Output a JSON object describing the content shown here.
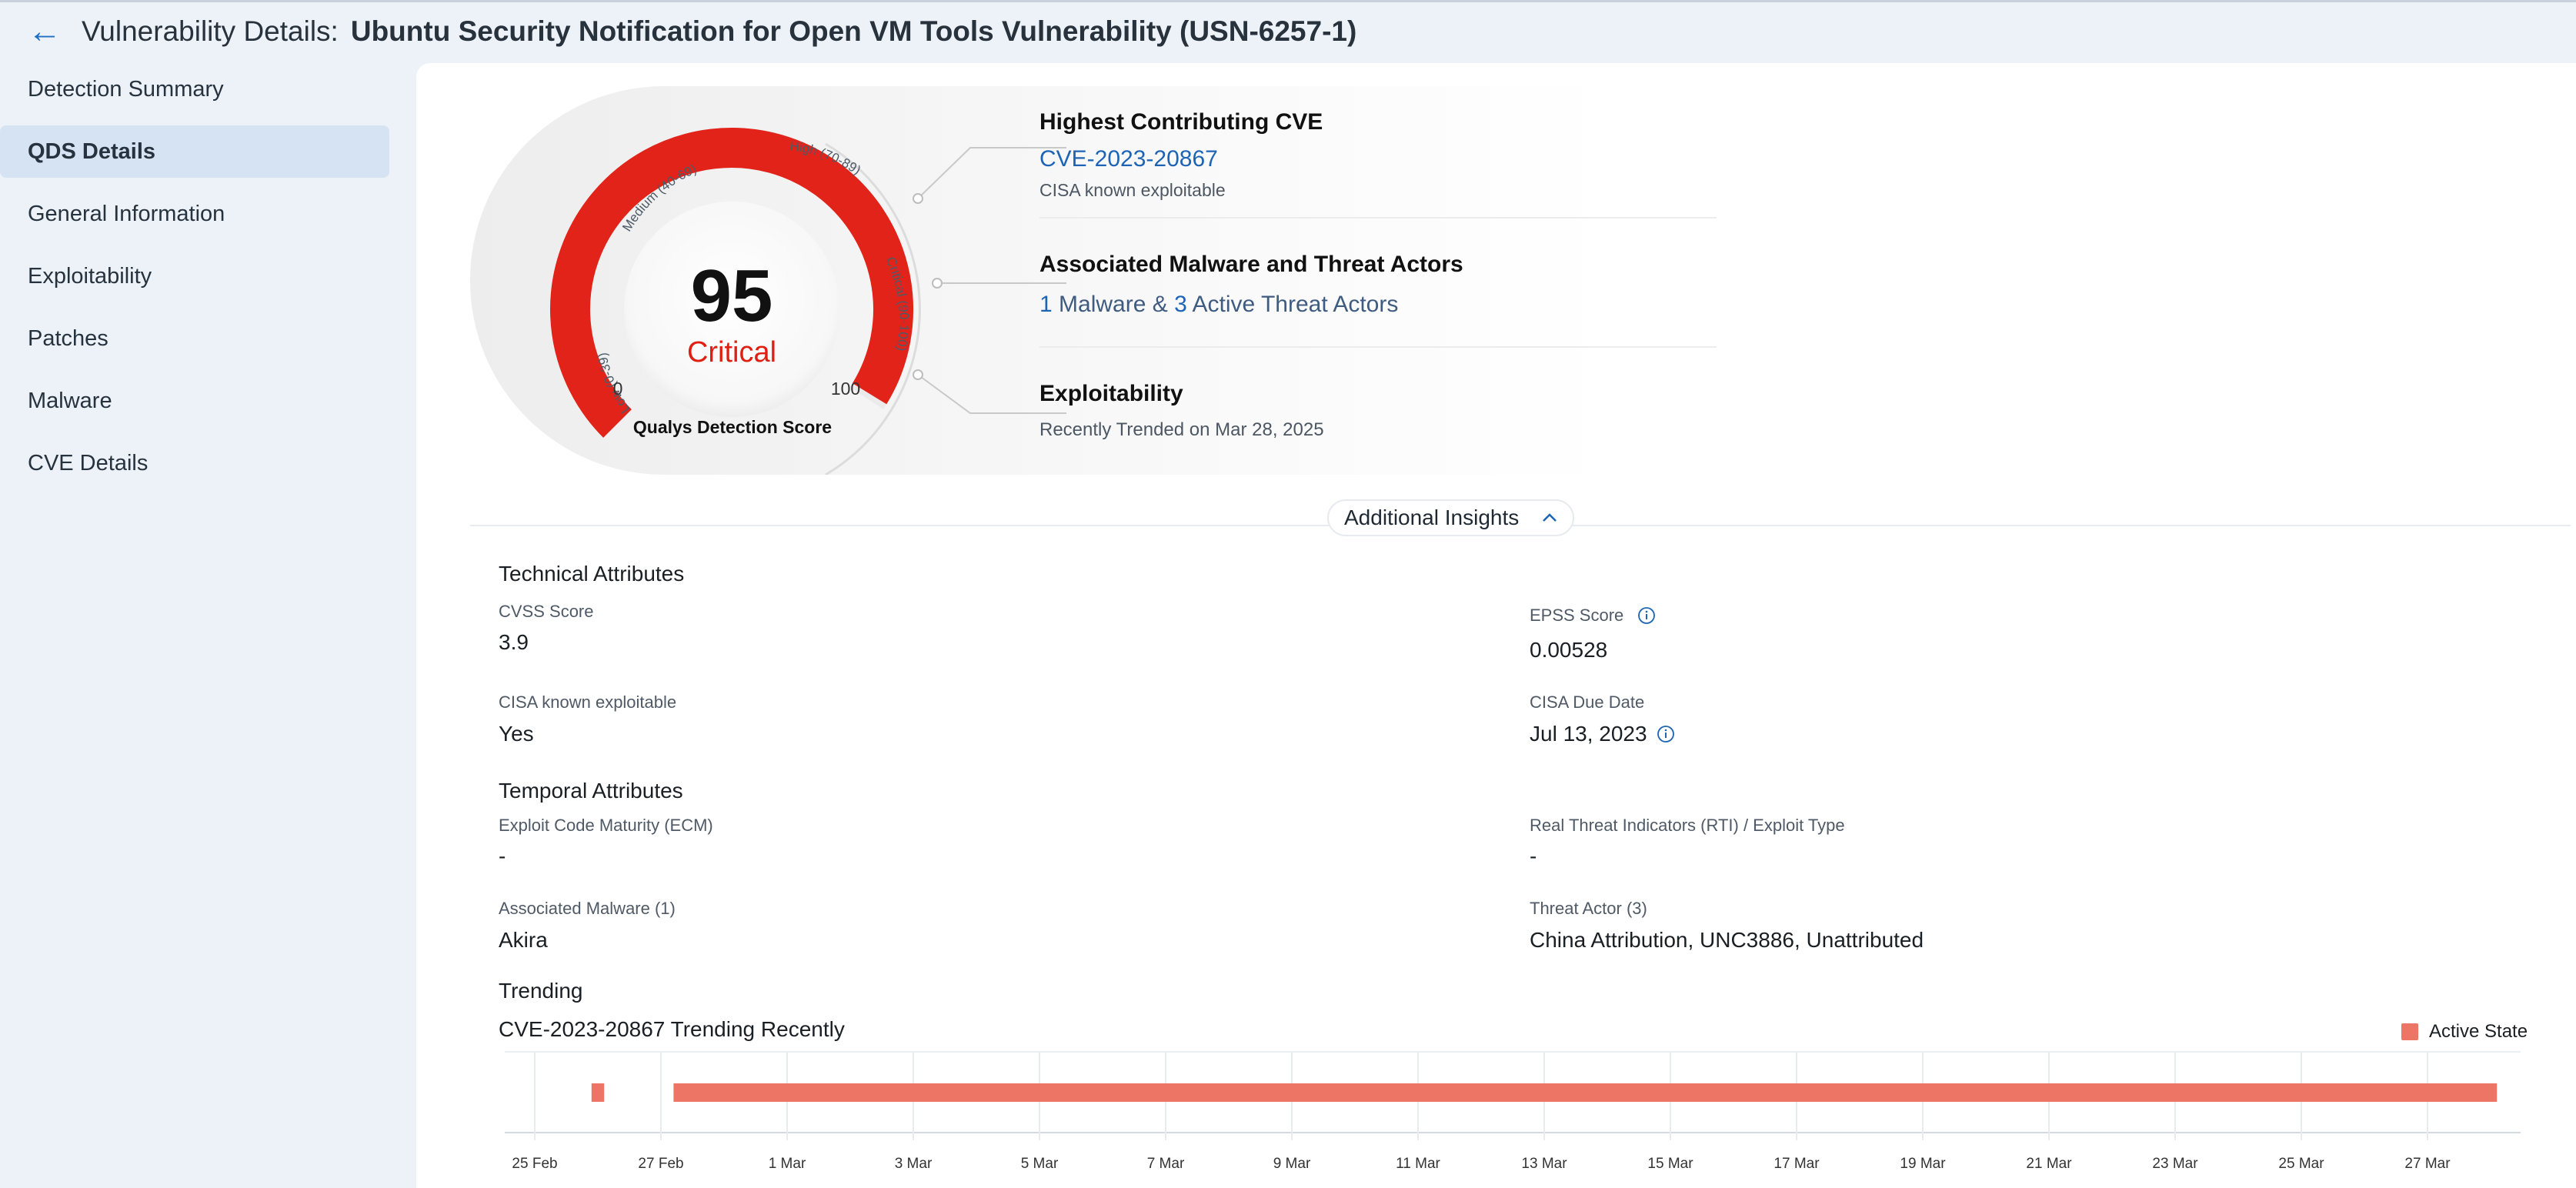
{
  "header": {
    "back_icon": "left-arrow-icon",
    "title_prefix": "Vulnerability Details:",
    "title_main": "Ubuntu Security Notification for Open VM Tools Vulnerability (USN-6257-1)"
  },
  "sidebar": {
    "items": [
      {
        "label": "Detection Summary",
        "active": false
      },
      {
        "label": "QDS Details",
        "active": true
      },
      {
        "label": "General Information",
        "active": false
      },
      {
        "label": "Exploitability",
        "active": false
      },
      {
        "label": "Patches",
        "active": false
      },
      {
        "label": "Malware",
        "active": false
      },
      {
        "label": "CVE Details",
        "active": false
      }
    ]
  },
  "gauge": {
    "score": "95",
    "severity": "Critical",
    "min_label": "0",
    "max_label": "100",
    "caption": "Qualys Detection Score",
    "bands": [
      "Low (0-39)",
      "Medium (40-69)",
      "High (70-89)",
      "Critical (90-100)"
    ],
    "score_value": 95,
    "colors": {
      "red": "#e2231a",
      "score_text": "#e01e12"
    }
  },
  "insights": {
    "cve_title": "Highest Contributing CVE",
    "cve_id": "CVE-2023-20867",
    "cve_sub": "CISA known exploitable",
    "malware_title": "Associated Malware and Threat Actors",
    "malware_count": "1",
    "malware_mid": "Malware &",
    "actor_count": "3",
    "actor_text": "Active Threat Actors",
    "exploit_title": "Exploitability",
    "exploit_sub": "Recently Trended on Mar 28, 2025"
  },
  "additional_insights": {
    "label": "Additional Insights",
    "icon": "chevron-up-icon"
  },
  "technical": {
    "title": "Technical Attributes",
    "cvss_label": "CVSS Score",
    "cvss_value": "3.9",
    "epss_label": "EPSS Score",
    "epss_value": "0.00528",
    "cisa_label": "CISA known exploitable",
    "cisa_value": "Yes",
    "due_label": "CISA Due Date",
    "due_value": "Jul 13, 2023"
  },
  "temporal": {
    "title": "Temporal Attributes",
    "ecm_label": "Exploit Code Maturity (ECM)",
    "ecm_value": "-",
    "rti_label": "Real Threat Indicators (RTI) / Exploit Type",
    "rti_value": "-",
    "malware_label": "Associated Malware (1)",
    "malware_value": "Akira",
    "actor_label": "Threat Actor (3)",
    "actor_value": "China Attribution, UNC3886, Unattributed"
  },
  "trending": {
    "title": "Trending",
    "subtitle": "CVE-2023-20867 Trending Recently"
  },
  "chart_data": {
    "type": "bar",
    "title": "CVE-2023-20867 Trending Recently",
    "x_ticks": [
      "25 Feb",
      "27 Feb",
      "1 Mar",
      "3 Mar",
      "5 Mar",
      "7 Mar",
      "9 Mar",
      "11 Mar",
      "13 Mar",
      "15 Mar",
      "17 Mar",
      "19 Mar",
      "21 Mar",
      "23 Mar",
      "25 Mar",
      "27 Mar"
    ],
    "series": [
      {
        "name": "Active State",
        "color": "#ec7566",
        "ranges": [
          {
            "start_day": 0.9,
            "end_day": 1.1
          },
          {
            "start_day": 2.2,
            "end_day": 31.1
          }
        ]
      }
    ],
    "x_start": "25 Feb",
    "legend": "top-right",
    "grid": true
  }
}
